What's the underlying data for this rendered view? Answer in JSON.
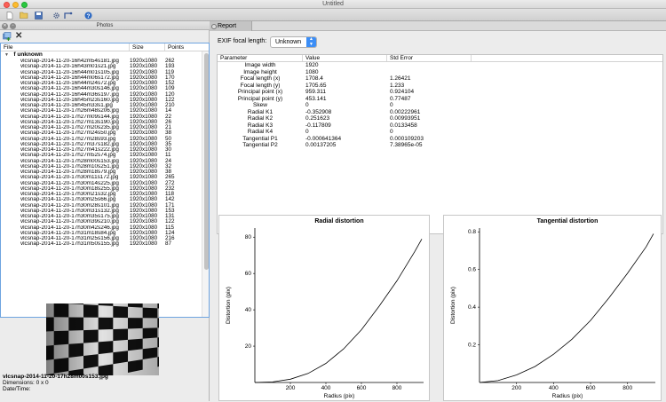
{
  "window": {
    "title": "Untitled"
  },
  "toolbar": {
    "icons": [
      "new-file-icon",
      "open-folder-icon",
      "save-icon",
      "settings-icon",
      "calibrate-icon",
      "help-icon"
    ]
  },
  "photos_panel": {
    "title": "Photos",
    "columns": {
      "file": "File",
      "size": "Size",
      "points": "Points"
    },
    "group": "f unknown",
    "files": [
      [
        "vlcsnap-2014-11-20-16h42m54s181.jpg",
        "1920x1080",
        "262"
      ],
      [
        "vlcsnap-2014-11-20-16h43m01s21.jpg",
        "1920x1080",
        "193"
      ],
      [
        "vlcsnap-2014-11-20-16h44m01s105.jpg",
        "1920x1080",
        "119"
      ],
      [
        "vlcsnap-2014-11-20-16h44m06s172.jpg",
        "1920x1080",
        "170"
      ],
      [
        "vlcsnap-2014-11-20-16h44m24s72.jpg",
        "1920x1080",
        "152"
      ],
      [
        "vlcsnap-2014-11-20-16h44m30s146.jpg",
        "1920x1080",
        "109"
      ],
      [
        "vlcsnap-2014-11-20-16h44m36s197.jpg",
        "1920x1080",
        "120"
      ],
      [
        "vlcsnap-2014-11-20-16h45m23s160.jpg",
        "1920x1080",
        "122"
      ],
      [
        "vlcsnap-2014-11-20-16h45m33s1.jpg",
        "1920x1080",
        "210"
      ],
      [
        "vlcsnap-2014-11-20-17h26m48s206.jpg",
        "1920x1080",
        "14"
      ],
      [
        "vlcsnap-2014-11-20-17h27m09s144.jpg",
        "1920x1080",
        "22"
      ],
      [
        "vlcsnap-2014-11-20-17h27m13s190.jpg",
        "1920x1080",
        "26"
      ],
      [
        "vlcsnap-2014-11-20-17h27m20s235.jpg",
        "1920x1080",
        "21"
      ],
      [
        "vlcsnap-2014-11-20-17h27m24s50.jpg",
        "1920x1080",
        "38"
      ],
      [
        "vlcsnap-2014-11-20-17h27m28s93.jpg",
        "1920x1080",
        "50"
      ],
      [
        "vlcsnap-2014-11-20-17h27m37s182.jpg",
        "1920x1080",
        "35"
      ],
      [
        "vlcsnap-2014-11-20-17h27m41s222.jpg",
        "1920x1080",
        "30"
      ],
      [
        "vlcsnap-2014-11-20-17h27m52s74.jpg",
        "1920x1080",
        "11"
      ],
      [
        "vlcsnap-2014-11-20-17h28m00s153.jpg",
        "1920x1080",
        "24"
      ],
      [
        "vlcsnap-2014-11-20-17h28m10s251.jpg",
        "1920x1080",
        "32"
      ],
      [
        "vlcsnap-2014-11-20-17h28m18s79.jpg",
        "1920x1080",
        "38"
      ],
      [
        "vlcsnap-2014-11-20-17h30m11s172.jpg",
        "1920x1080",
        "265"
      ],
      [
        "vlcsnap-2014-11-20-17h30m14s225.jpg",
        "1920x1080",
        "272"
      ],
      [
        "vlcsnap-2014-11-20-17h30m18s255.jpg",
        "1920x1080",
        "232"
      ],
      [
        "vlcsnap-2014-11-20-17h30m21s32.jpg",
        "1920x1080",
        "118"
      ],
      [
        "vlcsnap-2014-11-20-17h30m25s66.jpg",
        "1920x1080",
        "142"
      ],
      [
        "vlcsnap-2014-11-20-17h30m28s101.jpg",
        "1920x1080",
        "171"
      ],
      [
        "vlcsnap-2014-11-20-17h30m31s132.jpg",
        "1920x1080",
        "153"
      ],
      [
        "vlcsnap-2014-11-20-17h30m35s175.jpg",
        "1920x1080",
        "131"
      ],
      [
        "vlcsnap-2014-11-20-17h30m39s210.jpg",
        "1920x1080",
        "122"
      ],
      [
        "vlcsnap-2014-11-20-17h30m42s246.jpg",
        "1920x1080",
        "115"
      ],
      [
        "vlcsnap-2014-11-20-17h31m18s84.jpg",
        "1920x1080",
        "124"
      ],
      [
        "vlcsnap-2014-11-20-17h31m25s156.jpg",
        "1920x1080",
        "216"
      ],
      [
        "vlcsnap-2014-11-20-17h31m50s155.jpg",
        "1920x1080",
        "87"
      ]
    ],
    "selected_file": "vlcsnap-2014-11-20-17h28m00s153.jpg",
    "dimensions": "Dimensions: 0 x 0",
    "datetime": "Date/Time:"
  },
  "report": {
    "tab": "Report",
    "exif_label": "EXIF focal length:",
    "exif_value": "Unknown",
    "columns": {
      "parameter": "Parameter",
      "value": "Value",
      "std_error": "Std Error"
    },
    "rows": [
      [
        "Image width",
        "1920",
        ""
      ],
      [
        "Image height",
        "1080",
        ""
      ],
      [
        "Focal length (x)",
        "1708.4",
        "1.26421"
      ],
      [
        "Focal length (y)",
        "1705.65",
        "1.233"
      ],
      [
        "Principal point (x)",
        "959.311",
        "0.924104"
      ],
      [
        "Principal point (y)",
        "453.141",
        "0.77487"
      ],
      [
        "Skew",
        "0",
        "0"
      ],
      [
        "Radial K1",
        "-0.352908",
        "0.00222961"
      ],
      [
        "Radial K2",
        "0.251623",
        "0.00993951"
      ],
      [
        "Radial K3",
        "-0.117809",
        "0.0133458"
      ],
      [
        "Radial K4",
        "0",
        "0"
      ],
      [
        "Tangential P1",
        "-0.000641364",
        "0.000109203"
      ],
      [
        "Tangential P2",
        "0.00137205",
        "7.38965e-05"
      ]
    ]
  },
  "chart_data": [
    {
      "type": "line",
      "title": "Radial distortion",
      "xlabel": "Radius (pix)",
      "ylabel": "Distortion (pix)",
      "xlim": [
        0,
        950
      ],
      "ylim": [
        0,
        85
      ],
      "xticks": [
        200,
        400,
        600,
        800
      ],
      "yticks": [
        20,
        40,
        60,
        80
      ],
      "x": [
        0,
        100,
        200,
        300,
        400,
        500,
        600,
        700,
        800,
        900,
        940
      ],
      "y": [
        0,
        0.3,
        1.8,
        5,
        10.5,
        18.5,
        29,
        42,
        56,
        72,
        79
      ]
    },
    {
      "type": "line",
      "title": "Tangential distortion",
      "xlabel": "Radius (pix)",
      "ylabel": "Distortion (pix)",
      "xlim": [
        0,
        950
      ],
      "ylim": [
        0,
        0.82
      ],
      "xticks": [
        200,
        400,
        600,
        800
      ],
      "yticks": [
        0.2,
        0.4,
        0.6,
        0.8
      ],
      "x": [
        0,
        100,
        200,
        300,
        400,
        500,
        600,
        700,
        800,
        900,
        940
      ],
      "y": [
        0,
        0.01,
        0.04,
        0.085,
        0.15,
        0.23,
        0.33,
        0.45,
        0.58,
        0.72,
        0.79
      ]
    }
  ]
}
